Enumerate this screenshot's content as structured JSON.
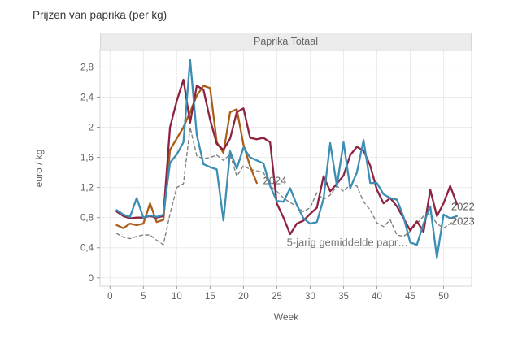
{
  "page": {
    "title": "Prijzen van paprika (per kg)"
  },
  "panel": {
    "title": "Paprika Totaal"
  },
  "chart_data": {
    "type": "line",
    "title": "Paprika Totaal",
    "xlabel": "Week",
    "ylabel": "euro / kg",
    "x_range": [
      -1.5,
      54.2
    ],
    "y_range": [
      -0.11,
      3.02
    ],
    "grid": true,
    "legend_position": "direct-labels",
    "x_ticks": {
      "values": [
        0,
        5,
        10,
        15,
        20,
        25,
        30,
        35,
        40,
        45,
        50
      ],
      "labels": [
        "0",
        "5",
        "10",
        "15",
        "20",
        "25",
        "30",
        "35",
        "40",
        "45",
        "50"
      ]
    },
    "y_ticks": {
      "values": [
        0,
        0.4,
        0.8,
        1.2,
        1.6,
        2,
        2.4,
        2.8
      ],
      "labels": [
        "0",
        "0,4",
        "0,8",
        "1,2",
        "1,6",
        "2",
        "2,4",
        "2,8"
      ]
    },
    "series": [
      {
        "name": "2022",
        "color": "#8c2340",
        "dash": false,
        "week_start": 1,
        "values": [
          0.88,
          0.82,
          0.79,
          0.8,
          0.8,
          0.82,
          0.8,
          0.82,
          2.0,
          2.35,
          2.63,
          2.06,
          2.55,
          2.5,
          2.1,
          1.78,
          1.7,
          1.85,
          2.2,
          2.25,
          1.86,
          1.84,
          1.86,
          1.8,
          0.99,
          0.8,
          0.58,
          0.72,
          0.76,
          0.85,
          0.93,
          1.35,
          1.15,
          1.25,
          1.36,
          1.63,
          1.74,
          1.69,
          1.49,
          1.17,
          0.99,
          1.06,
          0.95,
          0.79,
          0.63,
          0.75,
          0.61,
          1.17,
          0.82,
          0.99,
          1.22,
          0.98
        ]
      },
      {
        "name": "2023",
        "color": "#3c8eb4",
        "dash": false,
        "week_start": 1,
        "values": [
          0.9,
          0.84,
          0.81,
          1.06,
          0.8,
          0.83,
          0.81,
          0.84,
          1.53,
          1.64,
          1.8,
          2.9,
          1.9,
          1.51,
          1.47,
          1.44,
          0.76,
          1.68,
          1.45,
          1.73,
          1.6,
          1.56,
          1.52,
          1.22,
          1.02,
          1.01,
          1.19,
          0.97,
          0.79,
          0.72,
          0.74,
          1.05,
          1.79,
          1.22,
          1.8,
          1.19,
          1.4,
          1.83,
          1.26,
          1.26,
          1.11,
          1.06,
          1.04,
          0.81,
          0.47,
          0.44,
          0.72,
          0.95,
          0.27,
          0.84,
          0.79,
          0.82
        ]
      },
      {
        "name": "2024",
        "color": "#aa5f19",
        "dash": false,
        "week_start": 1,
        "values": [
          0.7,
          0.66,
          0.72,
          0.7,
          0.72,
          0.99,
          0.74,
          0.77,
          1.7,
          1.85,
          2.0,
          2.2,
          2.42,
          2.55,
          2.52,
          1.8,
          1.66,
          2.2,
          2.24,
          1.77,
          1.48,
          1.26
        ]
      },
      {
        "name": "5-jarig gemiddelde papr…",
        "color": "#818181",
        "dash": true,
        "week_start": 1,
        "values": [
          0.59,
          0.54,
          0.52,
          0.55,
          0.57,
          0.57,
          0.5,
          0.44,
          0.85,
          1.2,
          1.25,
          2.0,
          1.62,
          1.58,
          1.6,
          1.63,
          1.56,
          1.64,
          1.35,
          1.49,
          1.44,
          1.42,
          1.4,
          1.22,
          1.15,
          1.06,
          1.0,
          0.95,
          0.88,
          0.93,
          1.13,
          1.04,
          1.1,
          1.22,
          1.15,
          1.24,
          1.22,
          1.01,
          0.9,
          0.73,
          0.68,
          0.77,
          0.57,
          0.55,
          0.62,
          0.72,
          0.82,
          0.85,
          0.72,
          0.66,
          0.72,
          0.78
        ]
      }
    ],
    "annotations": [
      {
        "text": "2024",
        "x": 24.7,
        "y": 1.29,
        "color": "#666666"
      },
      {
        "text": "5-jarig gemiddelde papr…",
        "x": 35.6,
        "y": 0.47,
        "color": "#767676"
      },
      {
        "text": "2022",
        "x": 52.9,
        "y": 0.95,
        "color": "#5f5f5f"
      },
      {
        "text": "2023",
        "x": 52.9,
        "y": 0.75,
        "color": "#5f5f5f"
      }
    ],
    "colors": {
      "grid": "#ebebeb",
      "plot_border": "#d6d6d6",
      "tick_mark": "#999999",
      "tick_text": "#606060"
    }
  }
}
